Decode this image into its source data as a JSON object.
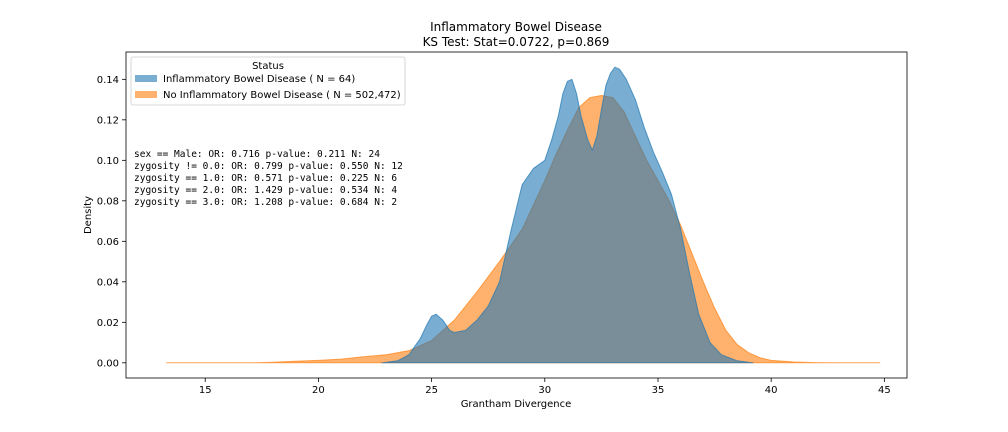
{
  "chart_data": {
    "type": "area",
    "title": "Inflammatory Bowel Disease",
    "subtitle": "KS Test: Stat=0.0722, p=0.869",
    "xlabel": "Grantham Divergence",
    "ylabel": "Density",
    "xlim": [
      11.5,
      46.0
    ],
    "ylim": [
      -0.0075,
      0.1535
    ],
    "x_ticks": [
      "15",
      "20",
      "25",
      "30",
      "35",
      "40",
      "45"
    ],
    "y_ticks": [
      "0.00",
      "0.02",
      "0.04",
      "0.06",
      "0.08",
      "0.10",
      "0.12",
      "0.14"
    ],
    "grid": false,
    "legend": {
      "title": "Status",
      "placement": "top-left",
      "entries": [
        {
          "label": "Inflammatory Bowel Disease ( N = 64)",
          "color": "#1f77b4"
        },
        {
          "label": "No Inflammatory Bowel Disease ( N = 502,472)",
          "color": "#ff7f0e"
        }
      ]
    },
    "annotations": [
      "sex == Male: OR: 0.716 p-value: 0.211 N: 24",
      "zygosity != 0.0: OR: 0.799 p-value: 0.550 N: 12",
      "zygosity == 1.0: OR: 0.571 p-value: 0.225 N: 6",
      "zygosity == 2.0: OR: 1.429 p-value: 0.534 N: 4",
      "zygosity == 3.0: OR: 1.208 p-value: 0.684 N: 2"
    ],
    "series": [
      {
        "name": "Inflammatory Bowel Disease ( N = 64)",
        "color": "#1f77b4",
        "alpha": 0.6,
        "x": [
          22.8,
          23.5,
          24.0,
          24.5,
          24.8,
          25.0,
          25.2,
          25.5,
          25.8,
          26.0,
          26.5,
          27.0,
          27.5,
          28.0,
          28.5,
          29.0,
          29.5,
          30.0,
          30.3,
          30.6,
          30.8,
          31.0,
          31.2,
          31.4,
          31.6,
          31.9,
          32.1,
          32.3,
          32.5,
          32.7,
          32.9,
          33.1,
          33.3,
          33.6,
          34.0,
          34.4,
          34.8,
          35.2,
          35.6,
          36.0,
          36.4,
          36.8,
          37.3,
          37.8,
          38.5,
          39.2
        ],
        "y": [
          0.0,
          0.001,
          0.004,
          0.012,
          0.019,
          0.023,
          0.024,
          0.021,
          0.016,
          0.015,
          0.016,
          0.021,
          0.028,
          0.04,
          0.065,
          0.088,
          0.096,
          0.1,
          0.11,
          0.122,
          0.133,
          0.139,
          0.14,
          0.133,
          0.122,
          0.11,
          0.105,
          0.112,
          0.125,
          0.137,
          0.143,
          0.146,
          0.145,
          0.14,
          0.13,
          0.116,
          0.104,
          0.094,
          0.083,
          0.066,
          0.044,
          0.024,
          0.01,
          0.004,
          0.001,
          0.0
        ]
      },
      {
        "name": "No Inflammatory Bowel Disease ( N = 502,472)",
        "color": "#ff7f0e",
        "alpha": 0.6,
        "x": [
          13.3,
          15.0,
          17.0,
          18.0,
          19.0,
          20.0,
          21.0,
          22.0,
          23.0,
          24.0,
          25.0,
          26.0,
          27.0,
          28.0,
          28.5,
          29.0,
          29.5,
          30.0,
          30.5,
          31.0,
          31.5,
          32.0,
          32.5,
          33.0,
          33.5,
          34.0,
          34.5,
          35.0,
          35.5,
          36.0,
          36.5,
          37.0,
          37.5,
          38.0,
          38.5,
          39.0,
          39.5,
          40.0,
          41.0,
          42.0,
          43.0,
          44.8
        ],
        "y": [
          0.0,
          0.0,
          0.0,
          0.0003,
          0.0008,
          0.0012,
          0.0018,
          0.003,
          0.004,
          0.006,
          0.011,
          0.021,
          0.035,
          0.05,
          0.058,
          0.066,
          0.078,
          0.09,
          0.103,
          0.115,
          0.126,
          0.131,
          0.132,
          0.131,
          0.124,
          0.112,
          0.1,
          0.09,
          0.08,
          0.068,
          0.054,
          0.04,
          0.027,
          0.016,
          0.009,
          0.005,
          0.0025,
          0.0012,
          0.0004,
          0.0001,
          0.0,
          0.0
        ]
      }
    ]
  }
}
